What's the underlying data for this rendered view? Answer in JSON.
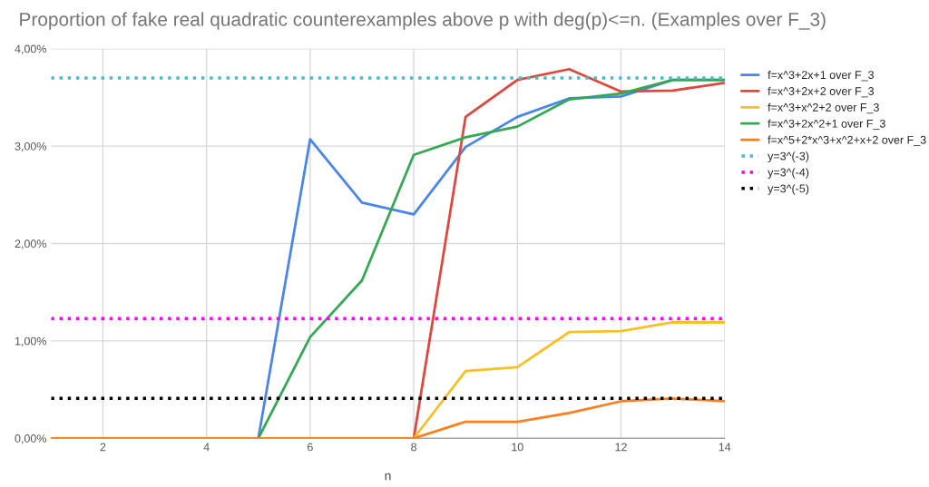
{
  "chart_data": {
    "type": "line",
    "title": "Proportion of fake real quadratic counterexamples above p with deg(p)<=n. (Examples over F_3)",
    "xlabel": "n",
    "x": [
      1,
      2,
      3,
      4,
      5,
      6,
      7,
      8,
      9,
      10,
      11,
      12,
      13,
      14
    ],
    "series": [
      {
        "name": "f=x^3+2x+1 over F_3",
        "color": "#4a86e8",
        "values": [
          null,
          null,
          null,
          null,
          0,
          3.07,
          2.42,
          2.3,
          2.99,
          3.3,
          3.49,
          3.51,
          3.68,
          3.68
        ]
      },
      {
        "name": "f=x^3+2x+2 over F_3",
        "color": "#e0473c",
        "values": [
          null,
          null,
          null,
          null,
          null,
          null,
          null,
          0,
          3.3,
          3.68,
          3.79,
          3.56,
          3.57,
          3.65
        ]
      },
      {
        "name": "f=x^3+x^2+2 over F_3",
        "color": "#f6c026",
        "values": [
          null,
          null,
          null,
          null,
          null,
          null,
          null,
          0,
          0.69,
          0.73,
          1.09,
          1.1,
          1.19,
          1.19
        ]
      },
      {
        "name": "f=x^3+2x^2+1 over F_3",
        "color": "#34a853",
        "values": [
          null,
          null,
          null,
          null,
          0,
          1.04,
          1.62,
          2.91,
          3.09,
          3.2,
          3.48,
          3.54,
          3.68,
          3.68
        ]
      },
      {
        "name": "f=x^5+2*x^3+x^2+x+2 over F_3",
        "color": "#ff7f1e",
        "values": [
          0,
          0,
          0,
          0,
          0,
          0,
          0,
          0,
          0.17,
          0.17,
          0.26,
          0.38,
          0.41,
          0.38
        ]
      },
      {
        "name": "y=3^(-3)",
        "color": "#46bdc6",
        "line_style": "dotted",
        "values": [
          3.7,
          3.7,
          3.7,
          3.7,
          3.7,
          3.7,
          3.7,
          3.7,
          3.7,
          3.7,
          3.7,
          3.7,
          3.7,
          3.7
        ]
      },
      {
        "name": "y=3^(-4)",
        "color": "#ff00ff",
        "line_style": "dotted",
        "values": [
          1.23,
          1.23,
          1.23,
          1.23,
          1.23,
          1.23,
          1.23,
          1.23,
          1.23,
          1.23,
          1.23,
          1.23,
          1.23,
          1.23
        ]
      },
      {
        "name": "y=3^(-5)",
        "color": "#000000",
        "line_style": "dotted",
        "values": [
          0.41,
          0.41,
          0.41,
          0.41,
          0.41,
          0.41,
          0.41,
          0.41,
          0.41,
          0.41,
          0.41,
          0.41,
          0.41,
          0.41
        ]
      }
    ],
    "xlim": [
      1,
      14
    ],
    "xticks": [
      2,
      4,
      6,
      8,
      10,
      12,
      14
    ],
    "ylim": [
      0,
      4
    ],
    "yticks": [
      {
        "value": 0,
        "label": "0,00%"
      },
      {
        "value": 1,
        "label": "1,00%"
      },
      {
        "value": 2,
        "label": "2,00%"
      },
      {
        "value": 3,
        "label": "3,00%"
      },
      {
        "value": 4,
        "label": "4,00%"
      }
    ],
    "grid": true,
    "legend": "right",
    "line_style": "solid",
    "marker": "none"
  }
}
